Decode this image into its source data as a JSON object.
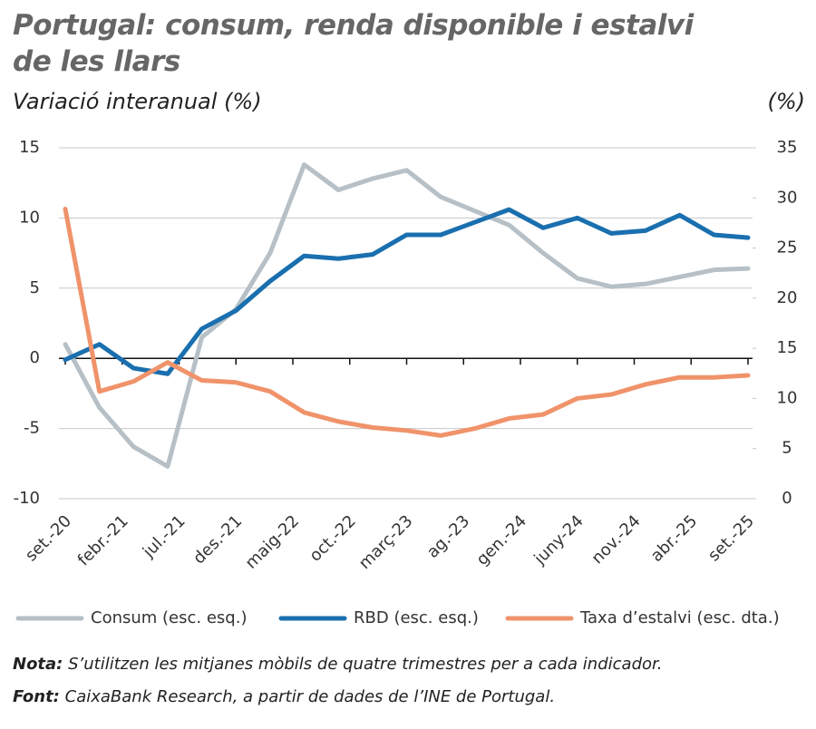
{
  "chart_data": {
    "type": "line",
    "title": "Portugal: consum, renda disponible i estalvi de les llars",
    "y_label": "Variació interanual (%)",
    "y2_label": "(%)",
    "x": [
      "2020-09",
      "2020-12",
      "2021-03",
      "2021-06",
      "2021-09",
      "2021-12",
      "2022-03",
      "2022-06",
      "2022-09",
      "2022-12",
      "2023-03",
      "2023-06",
      "2023-09",
      "2023-12",
      "2024-03",
      "2024-06",
      "2024-09",
      "2024-12",
      "2025-03",
      "2025-06",
      "2025-09"
    ],
    "xlim": [
      "2020-09",
      "2025-09"
    ],
    "xticks": [
      {
        "value": "2020-09",
        "label": "set.-20"
      },
      {
        "value": "2021-02",
        "label": "febr.-21"
      },
      {
        "value": "2021-07",
        "label": "jul.-21"
      },
      {
        "value": "2021-12",
        "label": "des.-21"
      },
      {
        "value": "2022-05",
        "label": "maig-22"
      },
      {
        "value": "2022-10",
        "label": "oct.-22"
      },
      {
        "value": "2023-03",
        "label": "març-23"
      },
      {
        "value": "2023-08",
        "label": "ag.-23"
      },
      {
        "value": "2024-01",
        "label": "gen.-24"
      },
      {
        "value": "2024-06",
        "label": "juny-24"
      },
      {
        "value": "2024-11",
        "label": "nov.-24"
      },
      {
        "value": "2025-04",
        "label": "abr.-25"
      },
      {
        "value": "2025-09",
        "label": "set.-25"
      }
    ],
    "ylim": [
      -10,
      15
    ],
    "yticks": [
      -10,
      -5,
      0,
      5,
      10,
      15
    ],
    "y2lim": [
      0,
      35
    ],
    "y2ticks": [
      0,
      5,
      10,
      15,
      20,
      25,
      30,
      35
    ],
    "grid": true,
    "series": [
      {
        "name": "Consum (esc. esq.)",
        "color": "#b6c0c6",
        "values": [
          1.0,
          -3.5,
          -6.3,
          -7.7,
          1.5,
          3.5,
          7.5,
          13.8,
          12.0,
          12.8,
          13.4,
          11.5,
          10.5,
          9.5,
          7.5,
          5.7,
          5.1,
          5.3,
          5.8,
          6.3,
          6.4
        ]
      },
      {
        "name": "RBD (esc. esq.)",
        "color": "#1a6faf",
        "values": [
          -0.1,
          1.0,
          -0.7,
          -1.1,
          2.1,
          3.4,
          5.5,
          7.3,
          7.1,
          7.4,
          8.8,
          8.8,
          9.7,
          10.6,
          9.3,
          10.0,
          8.9,
          9.1,
          10.2,
          8.8,
          8.6
        ]
      },
      {
        "name": "Taxa d’estalvi (esc. dta.)",
        "color": "#f0936a",
        "axis": "y2",
        "values": [
          28.9,
          10.7,
          11.7,
          13.6,
          11.8,
          11.6,
          10.7,
          8.6,
          7.7,
          7.1,
          6.8,
          6.3,
          7.0,
          8.0,
          8.4,
          10.0,
          10.4,
          11.4,
          12.1,
          12.1,
          12.3
        ]
      }
    ]
  },
  "notes": [
    {
      "label": "Nota:",
      "text": "S’utilitzen les mitjanes mòbils de quatre trimestres per a cada indicador."
    },
    {
      "label": "Font:",
      "text": "CaixaBank Research, a partir de dades de l’INE de Portugal."
    }
  ]
}
